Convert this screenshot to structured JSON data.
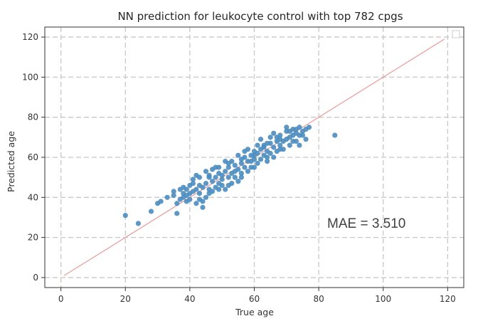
{
  "chart_data": {
    "type": "scatter",
    "title": "NN prediction for leukocyte control with top 782 cpgs",
    "xlabel": "True age",
    "ylabel": "Predicted age",
    "xlim": [
      -5,
      125
    ],
    "ylim": [
      -5,
      125
    ],
    "xticks": [
      0,
      20,
      40,
      60,
      80,
      100,
      120
    ],
    "yticks": [
      0,
      20,
      40,
      60,
      80,
      100,
      120
    ],
    "grid": true,
    "grid_style": "dashed",
    "legend": "top-right (empty)",
    "point_color": "#4a8cbf",
    "line_color": "#e8a2a2",
    "reference_line": {
      "x": [
        1,
        119
      ],
      "y": [
        1,
        119
      ]
    },
    "annotation": "MAE = 3.510",
    "points": [
      [
        20,
        31
      ],
      [
        24,
        27
      ],
      [
        28,
        33
      ],
      [
        30,
        37
      ],
      [
        31,
        38
      ],
      [
        33,
        40
      ],
      [
        35,
        43
      ],
      [
        36,
        37
      ],
      [
        36,
        32
      ],
      [
        37,
        39
      ],
      [
        38,
        42
      ],
      [
        38,
        40
      ],
      [
        39,
        41
      ],
      [
        39,
        44
      ],
      [
        40,
        42
      ],
      [
        40,
        39
      ],
      [
        41,
        43
      ],
      [
        41,
        47
      ],
      [
        42,
        44
      ],
      [
        42,
        37
      ],
      [
        43,
        46
      ],
      [
        43,
        39
      ],
      [
        44,
        45
      ],
      [
        44,
        35
      ],
      [
        45,
        47
      ],
      [
        45,
        40
      ],
      [
        46,
        44
      ],
      [
        46,
        50
      ],
      [
        47,
        48
      ],
      [
        47,
        43
      ],
      [
        48,
        50
      ],
      [
        48,
        45
      ],
      [
        49,
        47
      ],
      [
        49,
        52
      ],
      [
        50,
        51
      ],
      [
        50,
        46
      ],
      [
        51,
        53
      ],
      [
        51,
        44
      ],
      [
        52,
        50
      ],
      [
        52,
        55
      ],
      [
        53,
        52
      ],
      [
        53,
        47
      ],
      [
        54,
        56
      ],
      [
        54,
        50
      ],
      [
        55,
        54
      ],
      [
        55,
        48
      ],
      [
        56,
        57
      ],
      [
        56,
        52
      ],
      [
        57,
        55
      ],
      [
        57,
        60
      ],
      [
        58,
        58
      ],
      [
        58,
        53
      ],
      [
        59,
        61
      ],
      [
        59,
        55
      ],
      [
        60,
        59
      ],
      [
        60,
        63
      ],
      [
        61,
        57
      ],
      [
        61,
        62
      ],
      [
        62,
        64
      ],
      [
        62,
        59
      ],
      [
        63,
        61
      ],
      [
        63,
        66
      ],
      [
        64,
        63
      ],
      [
        64,
        58
      ],
      [
        65,
        67
      ],
      [
        65,
        62
      ],
      [
        66,
        65
      ],
      [
        66,
        60
      ],
      [
        67,
        68
      ],
      [
        67,
        63
      ],
      [
        68,
        66
      ],
      [
        68,
        71
      ],
      [
        69,
        68
      ],
      [
        69,
        64
      ],
      [
        70,
        73
      ],
      [
        70,
        69
      ],
      [
        71,
        70
      ],
      [
        71,
        66
      ],
      [
        72,
        74
      ],
      [
        72,
        71
      ],
      [
        73,
        72
      ],
      [
        73,
        68
      ],
      [
        74,
        75
      ],
      [
        74,
        71
      ],
      [
        75,
        73
      ],
      [
        76,
        74
      ],
      [
        77,
        75
      ],
      [
        76,
        69
      ],
      [
        85,
        71
      ],
      [
        41,
        49
      ],
      [
        38,
        45
      ],
      [
        42,
        51
      ],
      [
        45,
        53
      ],
      [
        48,
        55
      ],
      [
        51,
        58
      ],
      [
        55,
        61
      ],
      [
        58,
        64
      ],
      [
        62,
        69
      ],
      [
        66,
        72
      ],
      [
        70,
        75
      ],
      [
        44,
        38
      ],
      [
        46,
        42
      ],
      [
        49,
        44
      ],
      [
        52,
        46
      ],
      [
        56,
        50
      ],
      [
        60,
        55
      ],
      [
        64,
        60
      ],
      [
        68,
        64
      ],
      [
        72,
        68
      ],
      [
        74,
        66
      ],
      [
        39,
        38
      ],
      [
        47,
        54
      ],
      [
        53,
        58
      ],
      [
        57,
        63
      ],
      [
        61,
        66
      ],
      [
        65,
        70
      ],
      [
        50,
        49
      ],
      [
        54,
        53
      ],
      [
        59,
        58
      ],
      [
        63,
        65
      ],
      [
        67,
        70
      ],
      [
        43,
        42
      ],
      [
        35,
        41
      ],
      [
        37,
        44
      ],
      [
        40,
        46
      ],
      [
        43,
        50
      ],
      [
        46,
        51
      ],
      [
        49,
        55
      ],
      [
        52,
        57
      ],
      [
        56,
        59
      ],
      [
        60,
        61
      ],
      [
        64,
        67
      ],
      [
        68,
        69
      ],
      [
        71,
        73
      ],
      [
        75,
        71
      ],
      [
        73,
        74
      ]
    ]
  }
}
